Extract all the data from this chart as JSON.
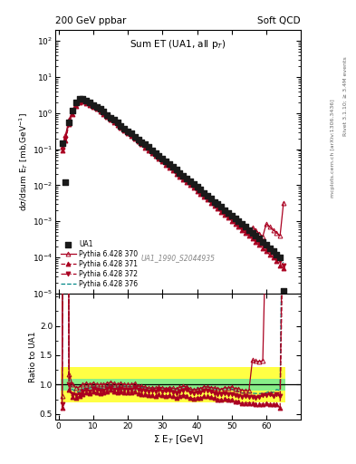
{
  "title_left": "200 GeV ppbar",
  "title_right": "Soft QCD",
  "plot_title": "Sum ET (UA1, all p$_T$)",
  "xlabel": "$\\Sigma$ E$_T$ [GeV]",
  "ylabel_main": "d$\\sigma$/dsum E$_T$ [mb,GeV$^{-1}$]",
  "ylabel_ratio": "Ratio to UA1",
  "right_label1": "Rivet 3.1.10; ≥ 3.4M events",
  "right_label2": "mcplots.cern.ch [arXiv:1306.3436]",
  "watermark": "UA1_1990_S2044935",
  "ua1_x": [
    1,
    2,
    3,
    4,
    5,
    6,
    7,
    8,
    9,
    10,
    11,
    12,
    13,
    14,
    15,
    16,
    17,
    18,
    19,
    20,
    21,
    22,
    23,
    24,
    25,
    26,
    27,
    28,
    29,
    30,
    31,
    32,
    33,
    34,
    35,
    36,
    37,
    38,
    39,
    40,
    41,
    42,
    43,
    44,
    45,
    46,
    47,
    48,
    49,
    50,
    51,
    52,
    53,
    54,
    55,
    56,
    57,
    58,
    59,
    60,
    61,
    62,
    63,
    64,
    65
  ],
  "ua1_y": [
    0.15,
    0.012,
    0.55,
    1.2,
    2.0,
    2.5,
    2.5,
    2.2,
    2.0,
    1.7,
    1.5,
    1.3,
    1.1,
    0.9,
    0.75,
    0.65,
    0.55,
    0.45,
    0.38,
    0.32,
    0.27,
    0.22,
    0.19,
    0.16,
    0.135,
    0.115,
    0.095,
    0.08,
    0.065,
    0.055,
    0.046,
    0.038,
    0.032,
    0.027,
    0.022,
    0.018,
    0.015,
    0.013,
    0.011,
    0.009,
    0.0075,
    0.006,
    0.005,
    0.0042,
    0.0035,
    0.003,
    0.0025,
    0.002,
    0.0017,
    0.0014,
    0.0012,
    0.001,
    0.00085,
    0.0007,
    0.00058,
    0.00048,
    0.0004,
    0.00033,
    0.00027,
    0.00022,
    0.00018,
    0.00015,
    0.00012,
    0.0001,
    1.2e-05
  ],
  "py370_x": [
    1,
    2,
    3,
    4,
    5,
    6,
    7,
    8,
    9,
    10,
    11,
    12,
    13,
    14,
    15,
    16,
    17,
    18,
    19,
    20,
    21,
    22,
    23,
    24,
    25,
    26,
    27,
    28,
    29,
    30,
    31,
    32,
    33,
    34,
    35,
    36,
    37,
    38,
    39,
    40,
    41,
    42,
    43,
    44,
    45,
    46,
    47,
    48,
    49,
    50,
    51,
    52,
    53,
    54,
    55,
    56,
    57,
    58,
    59,
    60,
    61,
    62,
    63,
    64,
    65
  ],
  "py370_y": [
    0.12,
    0.25,
    0.65,
    1.2,
    1.9,
    2.4,
    2.5,
    2.25,
    2.0,
    1.75,
    1.5,
    1.3,
    1.1,
    0.92,
    0.78,
    0.66,
    0.55,
    0.46,
    0.38,
    0.32,
    0.27,
    0.225,
    0.185,
    0.155,
    0.13,
    0.108,
    0.09,
    0.075,
    0.062,
    0.052,
    0.043,
    0.036,
    0.03,
    0.025,
    0.021,
    0.0175,
    0.0145,
    0.012,
    0.01,
    0.0083,
    0.007,
    0.0058,
    0.0048,
    0.004,
    0.0033,
    0.0028,
    0.0023,
    0.0019,
    0.0016,
    0.00135,
    0.00112,
    0.00093,
    0.00077,
    0.00063,
    0.00052,
    0.00068,
    0.00056,
    0.00046,
    0.00038,
    0.00085,
    0.0007,
    0.00058,
    0.00048,
    0.0004,
    0.0033
  ],
  "py371_x": [
    1,
    2,
    3,
    4,
    5,
    6,
    7,
    8,
    9,
    10,
    11,
    12,
    13,
    14,
    15,
    16,
    17,
    18,
    19,
    20,
    21,
    22,
    23,
    24,
    25,
    26,
    27,
    28,
    29,
    30,
    31,
    32,
    33,
    34,
    35,
    36,
    37,
    38,
    39,
    40,
    41,
    42,
    43,
    44,
    45,
    46,
    47,
    48,
    49,
    50,
    51,
    52,
    53,
    54,
    55,
    56,
    57,
    58,
    59,
    60,
    61,
    62,
    63,
    64,
    65
  ],
  "py371_y": [
    0.09,
    0.18,
    0.5,
    0.95,
    1.55,
    2.0,
    2.1,
    1.9,
    1.7,
    1.5,
    1.3,
    1.1,
    0.95,
    0.8,
    0.68,
    0.57,
    0.48,
    0.4,
    0.33,
    0.28,
    0.235,
    0.195,
    0.163,
    0.135,
    0.113,
    0.094,
    0.078,
    0.065,
    0.054,
    0.045,
    0.037,
    0.031,
    0.026,
    0.021,
    0.0178,
    0.0148,
    0.0122,
    0.0101,
    0.0084,
    0.007,
    0.0058,
    0.0048,
    0.004,
    0.0033,
    0.0027,
    0.00225,
    0.00185,
    0.00153,
    0.00126,
    0.00104,
    0.00086,
    0.00071,
    0.00058,
    0.00048,
    0.0004,
    0.00033,
    0.00027,
    0.00022,
    0.00018,
    0.00015,
    0.00012,
    0.0001,
    8e-05,
    6e-05,
    5e-05
  ],
  "py372_x": [
    1,
    2,
    3,
    4,
    5,
    6,
    7,
    8,
    9,
    10,
    11,
    12,
    13,
    14,
    15,
    16,
    17,
    18,
    19,
    20,
    21,
    22,
    23,
    24,
    25,
    26,
    27,
    28,
    29,
    30,
    31,
    32,
    33,
    34,
    35,
    36,
    37,
    38,
    39,
    40,
    41,
    42,
    43,
    44,
    45,
    46,
    47,
    48,
    49,
    50,
    51,
    52,
    53,
    54,
    55,
    56,
    57,
    58,
    59,
    60,
    61,
    62,
    63,
    64,
    65
  ],
  "py372_y": [
    0.1,
    0.2,
    0.55,
    1.0,
    1.65,
    2.1,
    2.2,
    2.0,
    1.78,
    1.57,
    1.36,
    1.16,
    0.99,
    0.835,
    0.705,
    0.595,
    0.5,
    0.42,
    0.35,
    0.295,
    0.248,
    0.208,
    0.174,
    0.145,
    0.122,
    0.102,
    0.085,
    0.071,
    0.059,
    0.049,
    0.041,
    0.034,
    0.028,
    0.023,
    0.0195,
    0.0163,
    0.0136,
    0.0113,
    0.0094,
    0.0078,
    0.0065,
    0.0054,
    0.0045,
    0.0037,
    0.003,
    0.0025,
    0.0021,
    0.0017,
    0.00142,
    0.00118,
    0.00098,
    0.00081,
    0.00067,
    0.00056,
    0.00046,
    0.00038,
    0.00031,
    0.00026,
    0.00022,
    0.00018,
    0.00015,
    0.00012,
    0.0001,
    8e-05,
    6e-05
  ],
  "py376_x": [
    1,
    2,
    3,
    4,
    5,
    6,
    7,
    8,
    9,
    10,
    11,
    12,
    13,
    14,
    15,
    16,
    17,
    18,
    19,
    20,
    21,
    22,
    23,
    24,
    25,
    26,
    27,
    28,
    29,
    30,
    31,
    32,
    33,
    34,
    35,
    36,
    37,
    38,
    39,
    40,
    41,
    42,
    43,
    44,
    45,
    46,
    47,
    48,
    49,
    50,
    51,
    52,
    53,
    54,
    55,
    56,
    57,
    58,
    59,
    60,
    61,
    62,
    63,
    64,
    65
  ],
  "py376_y": [
    0.11,
    0.22,
    0.6,
    1.1,
    1.75,
    2.2,
    2.3,
    2.1,
    1.88,
    1.65,
    1.43,
    1.22,
    1.04,
    0.875,
    0.74,
    0.625,
    0.525,
    0.44,
    0.37,
    0.31,
    0.26,
    0.218,
    0.183,
    0.153,
    0.128,
    0.107,
    0.09,
    0.075,
    0.062,
    0.052,
    0.043,
    0.036,
    0.03,
    0.025,
    0.0208,
    0.0174,
    0.0145,
    0.012,
    0.01,
    0.0085,
    0.007,
    0.0058,
    0.0048,
    0.004,
    0.0033,
    0.0027,
    0.0023,
    0.0019,
    0.00157,
    0.0013,
    0.00107,
    0.00088,
    0.00073,
    0.0006,
    0.0005,
    0.00041,
    0.00034,
    0.00028,
    0.00023,
    0.00019,
    0.00016,
    0.00013,
    0.00011,
    9e-05,
    7e-05
  ],
  "color_ua1": "#1a1a1a",
  "color_py370": "#aa0020",
  "color_py371": "#aa0020",
  "color_py372": "#aa0020",
  "color_py376": "#008888",
  "ylim_main": [
    1e-05,
    200
  ],
  "ylim_ratio": [
    0.4,
    2.55
  ],
  "xlim": [
    -1,
    70
  ]
}
